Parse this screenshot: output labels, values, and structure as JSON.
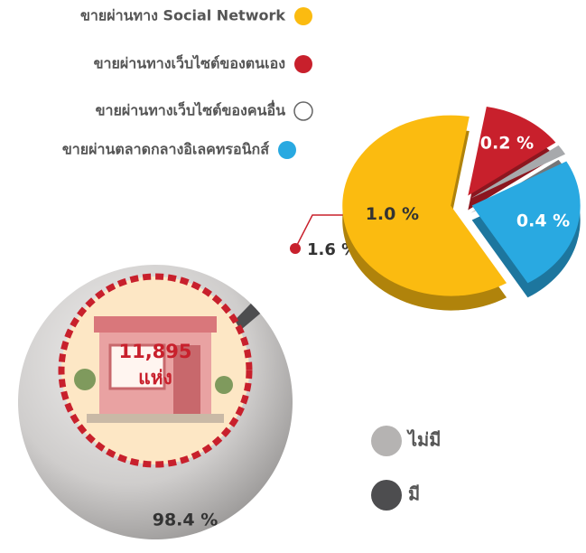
{
  "chart_data": [
    {
      "type": "pie",
      "categories": [
        "ไม่มี",
        "มี"
      ],
      "values": [
        98.4,
        1.6
      ],
      "value_labels": [
        "98.4 %",
        "1.6 %"
      ],
      "colors": [
        "#b5b3b2",
        "#4d4d4f"
      ],
      "annotations": [
        "11,895",
        "แห่ง"
      ]
    },
    {
      "type": "pie",
      "categories": [
        "ขายผ่านทาง Social Network",
        "ขายผ่านทางเว็บไซต์ของตนเอง",
        "ขายผ่านทางเว็บไซต์ของคนอื่น",
        "ขายผ่านตลาดกลางอิเลคทรอนิกส์"
      ],
      "values": [
        1.0,
        0.2,
        0.03,
        0.4
      ],
      "value_labels": [
        "1.0 %",
        "0.2 %",
        null,
        "0.4 %"
      ],
      "colors": [
        "#fbbb10",
        "#c8202c",
        "#a7a9ac",
        "#29a9e1"
      ]
    }
  ]
}
